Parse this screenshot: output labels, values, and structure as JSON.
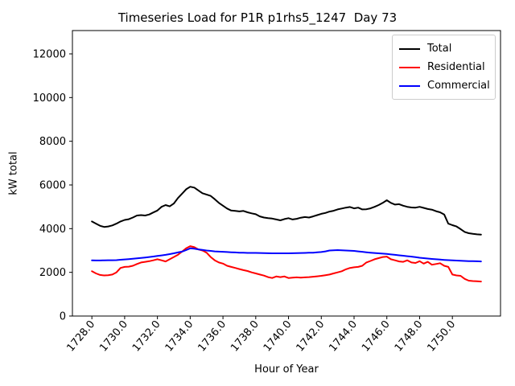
{
  "chart_data": {
    "type": "line",
    "title": "Timeseries Load for P1R p1rhs5_1247  Day 73",
    "xlabel": "Hour of Year",
    "ylabel": "kW total",
    "xlim": [
      1726.8125,
      1752.9375
    ],
    "ylim": [
      0,
      13067
    ],
    "grid": false,
    "legend_position": "upper right",
    "xticks": [
      1728,
      1730,
      1732,
      1734,
      1736,
      1738,
      1740,
      1742,
      1744,
      1746,
      1748,
      1750
    ],
    "xtick_labels": [
      "1728.0",
      "1730.0",
      "1732.0",
      "1734.0",
      "1736.0",
      "1738.0",
      "1740.0",
      "1742.0",
      "1744.0",
      "1746.0",
      "1748.0",
      "1750.0"
    ],
    "yticks": [
      0,
      2000,
      4000,
      6000,
      8000,
      10000,
      12000
    ],
    "ytick_labels": [
      "0",
      "2000",
      "4000",
      "6000",
      "8000",
      "10000",
      "12000"
    ],
    "x": [
      1728.0,
      1728.25,
      1728.5,
      1728.75,
      1729.0,
      1729.25,
      1729.5,
      1729.75,
      1730.0,
      1730.25,
      1730.5,
      1730.75,
      1731.0,
      1731.25,
      1731.5,
      1731.75,
      1732.0,
      1732.25,
      1732.5,
      1732.75,
      1733.0,
      1733.25,
      1733.5,
      1733.75,
      1734.0,
      1734.25,
      1734.5,
      1734.75,
      1735.0,
      1735.25,
      1735.5,
      1735.75,
      1736.0,
      1736.25,
      1736.5,
      1736.75,
      1737.0,
      1737.25,
      1737.5,
      1737.75,
      1738.0,
      1738.25,
      1738.5,
      1738.75,
      1739.0,
      1739.25,
      1739.5,
      1739.75,
      1740.0,
      1740.25,
      1740.5,
      1740.75,
      1741.0,
      1741.25,
      1741.5,
      1741.75,
      1742.0,
      1742.25,
      1742.5,
      1742.75,
      1743.0,
      1743.25,
      1743.5,
      1743.75,
      1744.0,
      1744.25,
      1744.5,
      1744.75,
      1745.0,
      1745.25,
      1745.5,
      1745.75,
      1746.0,
      1746.25,
      1746.5,
      1746.75,
      1747.0,
      1747.25,
      1747.5,
      1747.75,
      1748.0,
      1748.25,
      1748.5,
      1748.75,
      1749.0,
      1749.25,
      1749.5,
      1749.75,
      1750.0,
      1750.25,
      1750.5,
      1750.75,
      1751.0,
      1751.25,
      1751.5,
      1751.75
    ],
    "series": [
      {
        "name": "Total",
        "color": "#000000",
        "values": [
          4330,
          4230,
          4130,
          4080,
          4100,
          4150,
          4230,
          4330,
          4400,
          4430,
          4510,
          4600,
          4620,
          4600,
          4650,
          4740,
          4830,
          5000,
          5080,
          5020,
          5150,
          5400,
          5600,
          5800,
          5920,
          5880,
          5750,
          5620,
          5560,
          5500,
          5350,
          5180,
          5050,
          4920,
          4830,
          4810,
          4790,
          4810,
          4750,
          4700,
          4660,
          4560,
          4510,
          4480,
          4460,
          4420,
          4380,
          4440,
          4480,
          4420,
          4450,
          4500,
          4530,
          4510,
          4560,
          4620,
          4680,
          4720,
          4780,
          4820,
          4880,
          4920,
          4960,
          4990,
          4930,
          4960,
          4880,
          4890,
          4930,
          5000,
          5080,
          5180,
          5300,
          5180,
          5100,
          5120,
          5050,
          5000,
          4970,
          4960,
          5000,
          4950,
          4900,
          4870,
          4800,
          4750,
          4650,
          4230,
          4160,
          4100,
          3980,
          3850,
          3790,
          3760,
          3740,
          3730
        ]
      },
      {
        "name": "Residential",
        "color": "#ff0000",
        "values": [
          2050,
          1950,
          1880,
          1860,
          1870,
          1900,
          2000,
          2200,
          2250,
          2260,
          2300,
          2380,
          2450,
          2480,
          2510,
          2550,
          2600,
          2550,
          2500,
          2600,
          2700,
          2800,
          2950,
          3100,
          3200,
          3150,
          3050,
          3000,
          2900,
          2700,
          2550,
          2450,
          2400,
          2300,
          2250,
          2200,
          2150,
          2100,
          2060,
          2000,
          1950,
          1900,
          1850,
          1780,
          1740,
          1810,
          1780,
          1810,
          1740,
          1760,
          1770,
          1760,
          1770,
          1780,
          1800,
          1820,
          1840,
          1870,
          1900,
          1950,
          2000,
          2050,
          2140,
          2200,
          2230,
          2250,
          2300,
          2450,
          2520,
          2600,
          2650,
          2700,
          2720,
          2600,
          2550,
          2500,
          2480,
          2550,
          2450,
          2430,
          2510,
          2400,
          2480,
          2350,
          2380,
          2420,
          2300,
          2250,
          1900,
          1860,
          1840,
          1700,
          1620,
          1600,
          1590,
          1580
        ]
      },
      {
        "name": "Commercial",
        "color": "#0000ff",
        "values": [
          2550,
          2545,
          2545,
          2550,
          2555,
          2555,
          2560,
          2575,
          2590,
          2605,
          2620,
          2640,
          2660,
          2680,
          2700,
          2725,
          2750,
          2775,
          2800,
          2835,
          2870,
          2910,
          2950,
          3020,
          3100,
          3080,
          3050,
          3025,
          3000,
          2980,
          2960,
          2950,
          2940,
          2930,
          2920,
          2910,
          2900,
          2895,
          2890,
          2890,
          2890,
          2885,
          2880,
          2875,
          2870,
          2870,
          2870,
          2870,
          2870,
          2875,
          2880,
          2885,
          2890,
          2895,
          2900,
          2915,
          2930,
          2960,
          3000,
          3010,
          3020,
          3010,
          3000,
          2990,
          2980,
          2960,
          2940,
          2920,
          2900,
          2885,
          2870,
          2855,
          2840,
          2820,
          2800,
          2780,
          2760,
          2740,
          2720,
          2695,
          2670,
          2650,
          2630,
          2615,
          2600,
          2585,
          2570,
          2560,
          2550,
          2540,
          2530,
          2520,
          2515,
          2510,
          2505,
          2500
        ]
      }
    ]
  }
}
